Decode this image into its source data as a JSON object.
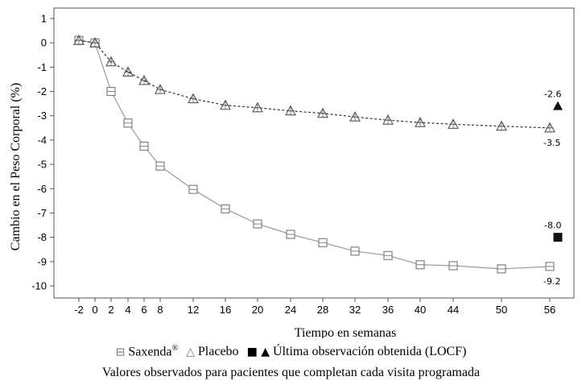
{
  "chart_data": {
    "type": "line",
    "xlabel": "Tiempo en semanas",
    "ylabel": "Cambio en el Peso Corporal (%)",
    "x": [
      -2,
      0,
      2,
      4,
      6,
      8,
      12,
      16,
      20,
      24,
      28,
      32,
      36,
      40,
      44,
      50,
      56
    ],
    "xticks": [
      "-2",
      "0",
      "2",
      "4",
      "6",
      "8",
      "12",
      "16",
      "20",
      "24",
      "28",
      "32",
      "36",
      "40",
      "44",
      "50",
      "56"
    ],
    "ylim": [
      -10,
      1
    ],
    "yticks": [
      "1",
      "0",
      "-1",
      "-2",
      "-3",
      "-4",
      "-5",
      "-6",
      "-7",
      "-8",
      "-9",
      "-10"
    ],
    "grid": false,
    "series": [
      {
        "name": "Saxenda",
        "marker": "square-open",
        "line": "solid",
        "color": "#7f7f7f",
        "values": [
          0.1,
          0.0,
          -2.0,
          -3.3,
          -4.25,
          -5.07,
          -6.03,
          -6.83,
          -7.45,
          -7.88,
          -8.22,
          -8.57,
          -8.75,
          -9.13,
          -9.17,
          -9.3,
          -9.2
        ],
        "end_label": "-9.2"
      },
      {
        "name": "Placebo",
        "marker": "triangle-open",
        "line": "dashed",
        "color": "#222222",
        "values": [
          0.1,
          0.0,
          -0.78,
          -1.2,
          -1.55,
          -1.92,
          -2.3,
          -2.57,
          -2.67,
          -2.8,
          -2.9,
          -3.05,
          -3.18,
          -3.28,
          -3.35,
          -3.43,
          -3.5
        ],
        "end_label": "-3.5"
      }
    ],
    "locf": [
      {
        "series": "Saxenda",
        "marker": "square-filled",
        "x": 57,
        "value": -8.0,
        "label": "-8.0"
      },
      {
        "series": "Placebo",
        "marker": "triangle-filled",
        "x": 57,
        "value": -2.6,
        "label": "-2.6"
      }
    ],
    "legend": {
      "placement": "bottom",
      "saxenda_label": "Saxenda",
      "saxenda_sup": "®",
      "placebo_label": "Placebo",
      "locf_label": "Última observación obtenida (LOCF)",
      "sym_saxenda": "⊟",
      "sym_placebo": "△",
      "sym_locf": "■ ▲"
    },
    "footnote": "Valores observados para pacientes que completan cada visita programada"
  }
}
